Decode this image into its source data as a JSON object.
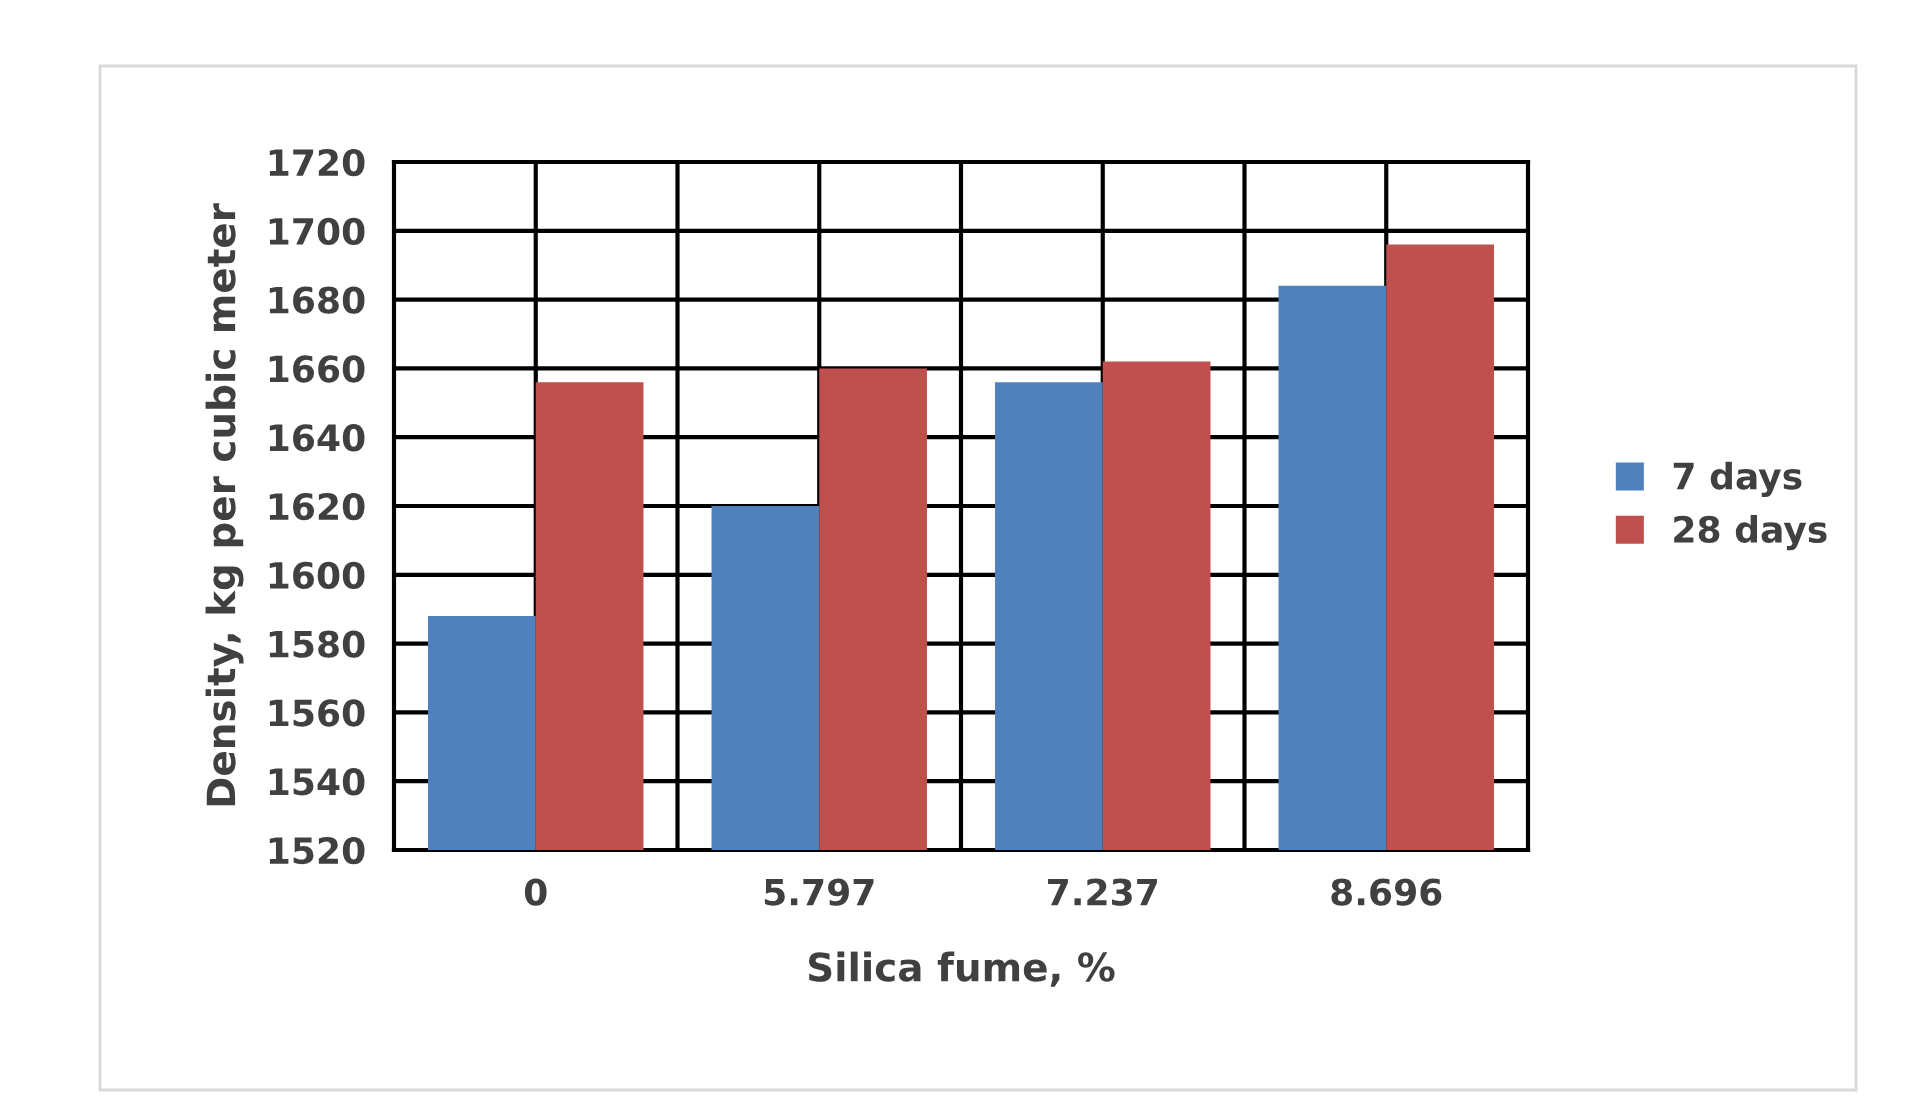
{
  "chart_data": {
    "type": "bar",
    "xlabel": "Silica fume, %",
    "ylabel": "Density, kg per cubic meter",
    "categories": [
      "0",
      "5.797",
      "7.237",
      "8.696"
    ],
    "series": [
      {
        "name": "7 days",
        "color": "#4f81bd",
        "values": [
          1588,
          1620,
          1656,
          1684
        ]
      },
      {
        "name": "28 days",
        "color": "#c0504d",
        "values": [
          1656,
          1660,
          1662,
          1696
        ]
      }
    ],
    "ylim": [
      1520,
      1720
    ],
    "yticks": [
      1520,
      1540,
      1560,
      1580,
      1600,
      1620,
      1640,
      1660,
      1680,
      1700,
      1720
    ],
    "grid": true,
    "legend": "right"
  }
}
